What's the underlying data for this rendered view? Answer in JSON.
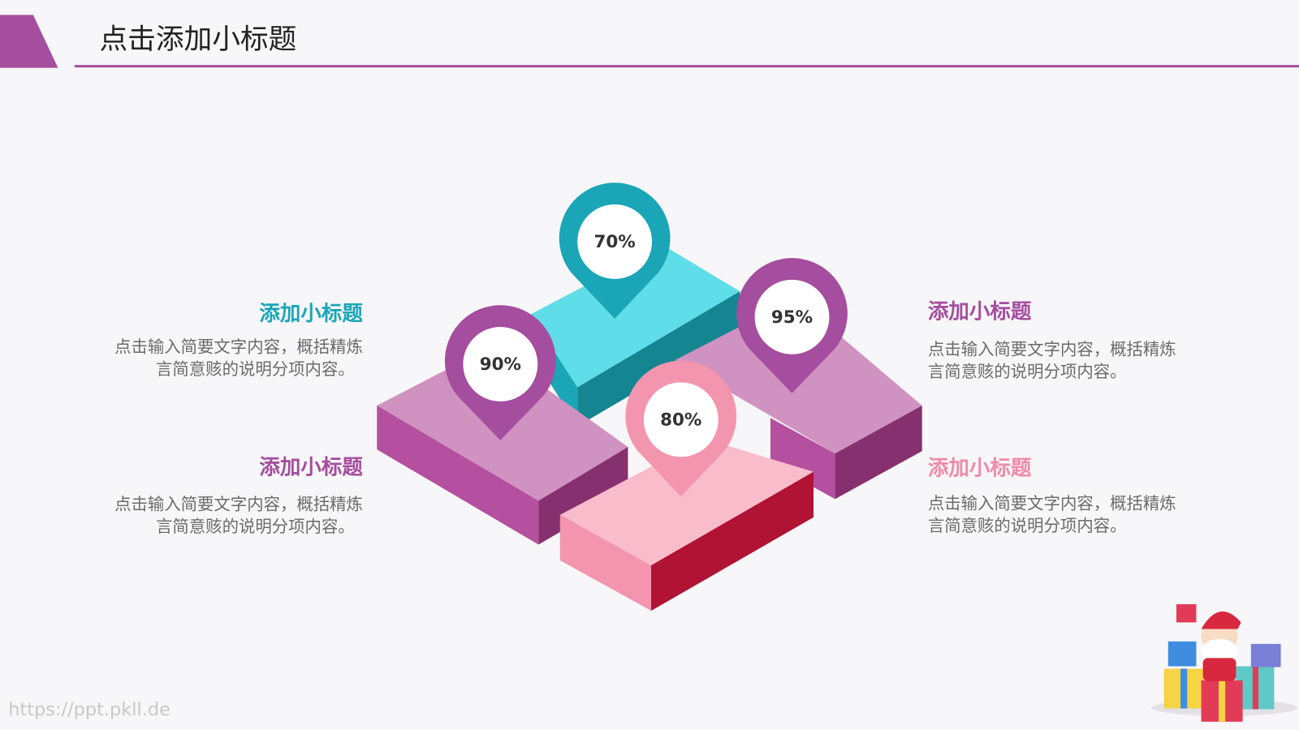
{
  "header": {
    "title": "点击添加小标题"
  },
  "pins": [
    "70%",
    "90%",
    "80%",
    "95%"
  ],
  "items": [
    {
      "title": "添加小标题",
      "desc": [
        "点击输入简要文字内容，概括精炼",
        "言简意赅的说明分项内容。"
      ]
    },
    {
      "title": "添加小标题",
      "desc": [
        "点击输入简要文字内容，概括精炼",
        "言简意赅的说明分项内容。"
      ]
    },
    {
      "title": "添加小标题",
      "desc": [
        "点击输入简要文字内容，概括精炼",
        "言简意赅的说明分项内容。"
      ]
    },
    {
      "title": "添加小标题",
      "desc": [
        "点击输入简要文字内容，概括精炼",
        "言简意赅的说明分项内容。"
      ]
    }
  ],
  "watermark": "https://ppt.pkll.de"
}
